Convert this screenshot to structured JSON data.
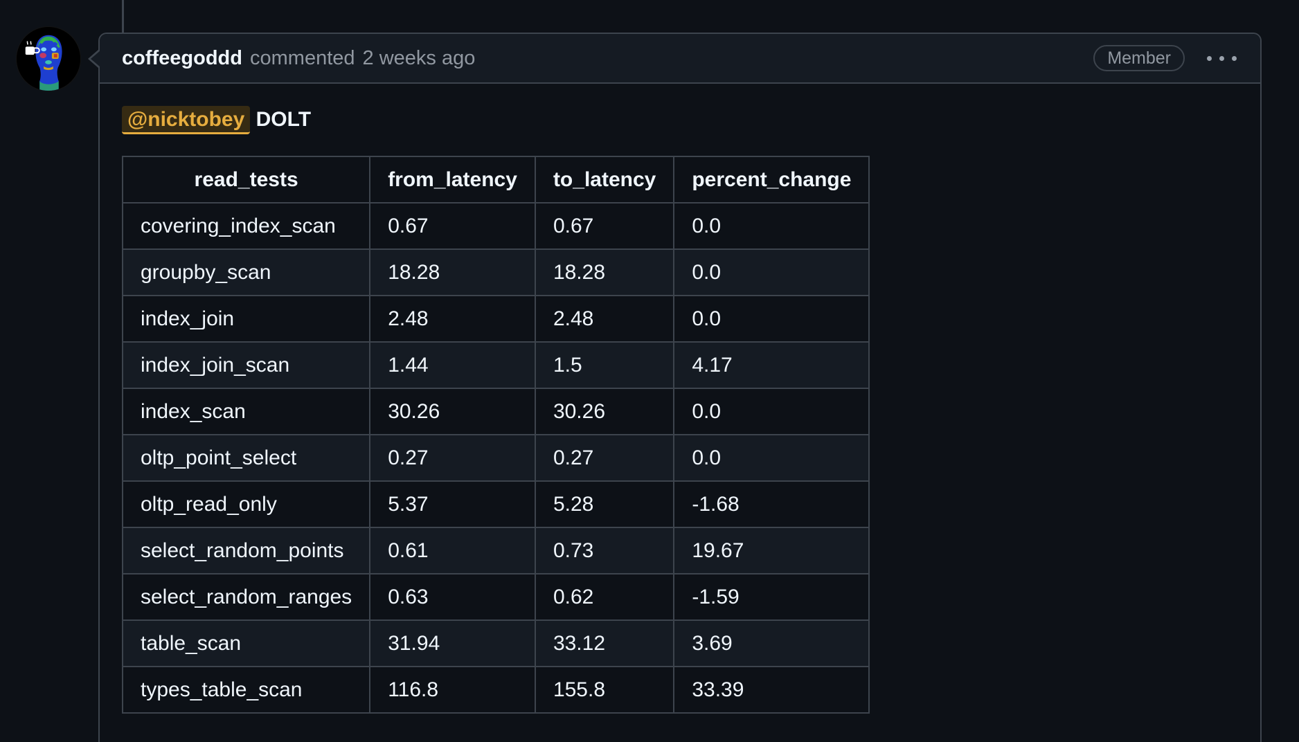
{
  "comment": {
    "author": "coffeegoddd",
    "action": "commented",
    "timestamp": "2 weeks ago",
    "association_badge": "Member",
    "mention": "@nicktobey",
    "text": "DOLT"
  },
  "icons": {
    "kebab_menu": "horizontal-three-dots",
    "avatar": "thermal-head-portrait-with-coffee-cup"
  },
  "colors": {
    "page_background": "#0d1117",
    "header_background": "#151b23",
    "border": "#3d444d",
    "text_primary": "#f0f6fc",
    "text_muted": "#9198a1",
    "mention_accent": "#e6ad3f",
    "table_alt_row": "#151b23"
  },
  "table": {
    "headers": [
      "read_tests",
      "from_latency",
      "to_latency",
      "percent_change"
    ],
    "rows": [
      [
        "covering_index_scan",
        "0.67",
        "0.67",
        "0.0"
      ],
      [
        "groupby_scan",
        "18.28",
        "18.28",
        "0.0"
      ],
      [
        "index_join",
        "2.48",
        "2.48",
        "0.0"
      ],
      [
        "index_join_scan",
        "1.44",
        "1.5",
        "4.17"
      ],
      [
        "index_scan",
        "30.26",
        "30.26",
        "0.0"
      ],
      [
        "oltp_point_select",
        "0.27",
        "0.27",
        "0.0"
      ],
      [
        "oltp_read_only",
        "5.37",
        "5.28",
        "-1.68"
      ],
      [
        "select_random_points",
        "0.61",
        "0.73",
        "19.67"
      ],
      [
        "select_random_ranges",
        "0.63",
        "0.62",
        "-1.59"
      ],
      [
        "table_scan",
        "31.94",
        "33.12",
        "3.69"
      ],
      [
        "types_table_scan",
        "116.8",
        "155.8",
        "33.39"
      ]
    ]
  }
}
